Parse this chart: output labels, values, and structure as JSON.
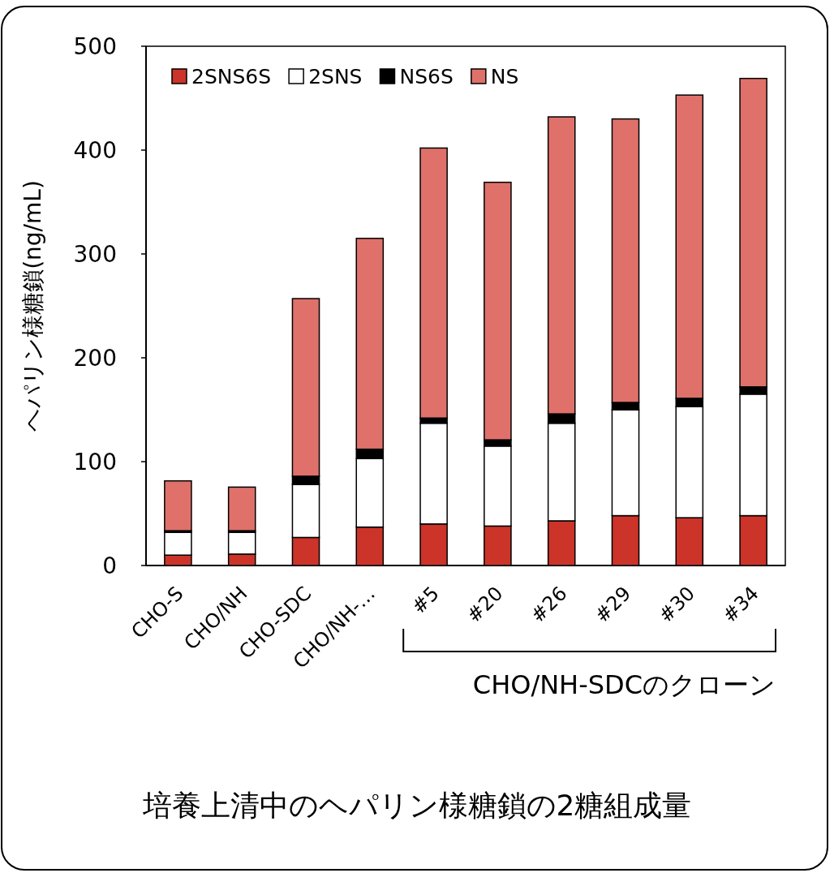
{
  "chart_data": {
    "type": "bar",
    "stacked": true,
    "title": "培養上清中のヘパリン様糖鎖の2糖組成量",
    "ylabel": "ヘパリン様糖鎖(ng/mL)",
    "categories": [
      "CHO-S",
      "CHO/NH",
      "CHO-SDC",
      "CHO/NH-…",
      "#5",
      "#20",
      "#26",
      "#29",
      "#30",
      "#34"
    ],
    "series": [
      {
        "name": "2SNS6S",
        "color": "#cc3329",
        "values": [
          10,
          11,
          27,
          37,
          40,
          38,
          43,
          48,
          46,
          48
        ]
      },
      {
        "name": "2SNS",
        "color": "#ffffff",
        "values": [
          22,
          21,
          51,
          66,
          97,
          77,
          94,
          102,
          107,
          117
        ]
      },
      {
        "name": "NS6S",
        "color": "#000000",
        "values": [
          1.5,
          1.5,
          8,
          9,
          5,
          6,
          9,
          7,
          8,
          7
        ]
      },
      {
        "name": "NS",
        "color": "#df716a",
        "values": [
          48,
          42,
          171,
          203,
          260,
          248,
          286,
          273,
          292,
          297
        ]
      }
    ],
    "ylim": [
      0,
      500
    ],
    "yticks": [
      0,
      100,
      200,
      300,
      400,
      500
    ],
    "legend": "top left",
    "annotations": [
      "CHO/NH-SDCのクローン"
    ]
  }
}
